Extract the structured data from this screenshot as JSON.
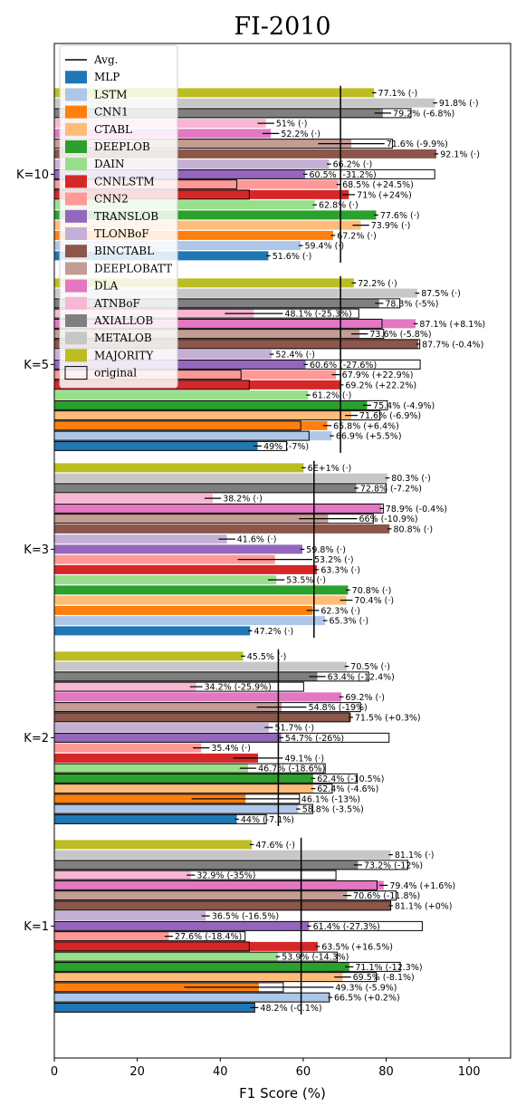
{
  "chart_data": {
    "type": "bar",
    "orientation": "horizontal",
    "title": "FI-2010",
    "xlabel": "F1 Score (%)",
    "ylabel": "",
    "xlim": [
      0,
      110
    ],
    "xticks": [
      "0",
      "20",
      "40",
      "60",
      "80",
      "100"
    ],
    "grid": false,
    "legend_position": "top-left",
    "avg_label": "Avg.",
    "original_label": "original",
    "models": [
      "MLP",
      "LSTM",
      "CNN1",
      "CTABL",
      "DEEPLOB",
      "DAIN",
      "CNNLSTM",
      "CNN2",
      "TRANSLOB",
      "TLONBoF",
      "BINCTABL",
      "DEEPLOBATT",
      "DLA",
      "ATNBoF",
      "AXIALLOB",
      "METALOB",
      "MAJORITY"
    ],
    "colors": [
      "#1f77b4",
      "#aec7e8",
      "#ff7f0e",
      "#ffbb78",
      "#2ca02c",
      "#98df8a",
      "#d62728",
      "#ff9896",
      "#9467bd",
      "#c5b0d5",
      "#8c564b",
      "#c49c94",
      "#e377c2",
      "#f7b6d2",
      "#7f7f7f",
      "#c7c7c7",
      "#bcbd22"
    ],
    "groups": [
      {
        "label": "K=10",
        "avg": 69,
        "values": [
          51.6,
          59.4,
          67.2,
          73.9,
          77.6,
          62.8,
          71,
          68.5,
          60.5,
          66.2,
          92.1,
          71.6,
          52.2,
          51,
          79.2,
          91.8,
          77.1
        ],
        "originals": [
          null,
          null,
          null,
          null,
          null,
          null,
          47,
          44,
          91.7,
          null,
          null,
          81.5,
          null,
          null,
          86,
          null,
          null
        ],
        "errors": [
          0,
          0,
          0,
          2,
          0,
          0,
          1.5,
          0,
          0,
          0,
          0,
          8,
          2,
          2,
          2,
          0,
          0
        ],
        "labels": [
          "51.6% (·)",
          "59.4% (·)",
          "67.2% (·)",
          "73.9% (·)",
          "77.6% (·)",
          "62.8% (·)",
          "71% (+24%)",
          "68.5% (+24.5%)",
          "60.5% (-31.2%)",
          "66.2% (·)",
          "92.1% (·)",
          "71.6% (-9.9%)",
          "52.2% (·)",
          "51% (·)",
          "79.2% (-6.8%)",
          "91.8% (·)",
          "77.1% (·)"
        ]
      },
      {
        "label": "K=5",
        "avg": 69,
        "values": [
          49,
          66.9,
          65.8,
          71.6,
          75.4,
          61.2,
          69.2,
          67.9,
          60.6,
          52.4,
          87.7,
          73.6,
          87.1,
          48.1,
          78.3,
          87.5,
          72.2
        ],
        "originals": [
          56,
          61.4,
          59.4,
          78.5,
          80.3,
          null,
          47,
          45,
          88.2,
          null,
          88.1,
          79.4,
          79,
          73.4,
          83.3,
          null,
          null
        ],
        "errors": [
          1,
          0,
          1,
          1.5,
          1,
          0,
          0,
          1,
          0,
          0,
          0,
          2,
          0,
          7,
          1,
          0,
          0
        ],
        "labels": [
          "49% (-7%)",
          "66.9% (+5.5%)",
          "65.8% (+6.4%)",
          "71.6% (-6.9%)",
          "75.4% (-4.9%)",
          "61.2% (·)",
          "69.2% (+22.2%)",
          "67.9% (+22.9%)",
          "60.6% (-27.6%)",
          "52.4% (·)",
          "87.7% (-0.4%)",
          "73.6% (-5.8%)",
          "87.1% (+8.1%)",
          "48.1% (-25.3%)",
          "78.3% (-5%)",
          "87.5% (·)",
          "72.2% (·)"
        ]
      },
      {
        "label": "K=3",
        "avg": 62.6,
        "values": [
          47.2,
          65.3,
          62.3,
          70.4,
          70.8,
          53.5,
          63.3,
          53.2,
          59.8,
          41.6,
          80.8,
          66,
          78.9,
          38.2,
          72.8,
          80.3,
          60.1
        ],
        "originals": [
          null,
          null,
          null,
          null,
          null,
          null,
          null,
          null,
          null,
          null,
          null,
          76.9,
          79.3,
          null,
          80,
          null,
          null
        ],
        "errors": [
          0,
          0,
          1.5,
          1.5,
          0,
          2,
          0,
          9,
          0,
          2,
          0,
          7,
          0,
          2,
          0,
          0,
          0
        ],
        "labels": [
          "47.2% (·)",
          "65.3% (·)",
          "62.3% (·)",
          "70.4% (·)",
          "70.8% (·)",
          "53.5% (·)",
          "63.3% (·)",
          "53.2% (·)",
          "59.8% (·)",
          "41.6% (·)",
          "80.8% (·)",
          "66% (-10.9%)",
          "78.9% (-0.4%)",
          "38.2% (·)",
          "72.8% (-7.2%)",
          "80.3% (·)",
          "6E+1% (·)"
        ]
      },
      {
        "label": "K=2",
        "avg": 54,
        "values": [
          44,
          58.8,
          46.1,
          62.4,
          62.4,
          46.7,
          49.1,
          35.4,
          54.7,
          51.7,
          71.5,
          54.8,
          69.2,
          34.2,
          63.4,
          70.5,
          45.5
        ],
        "originals": [
          51.1,
          62.3,
          59.1,
          67,
          73,
          65.3,
          null,
          null,
          80.7,
          null,
          71.2,
          73.8,
          null,
          60.1,
          75.8,
          null,
          null
        ],
        "errors": [
          0,
          0,
          13,
          0,
          0,
          2,
          6,
          2,
          0,
          1,
          0,
          6,
          0,
          1.5,
          2,
          0,
          0
        ],
        "labels": [
          "44% (-7.1%)",
          "58.8% (-3.5%)",
          "46.1% (-13%)",
          "62.4% (-4.6%)",
          "62.4% (-10.5%)",
          "46.7% (-18.6%)",
          "49.1% (·)",
          "35.4% (·)",
          "54.7% (-26%)",
          "51.7% (·)",
          "71.5% (+0.3%)",
          "54.8% (-19%)",
          "69.2% (·)",
          "34.2% (-25.9%)",
          "63.4% (-12.4%)",
          "70.5% (·)",
          "45.5% (·)"
        ]
      },
      {
        "label": "K=1",
        "avg": 59.5,
        "values": [
          48.2,
          66.5,
          49.3,
          69.5,
          71.1,
          53.9,
          63.5,
          27.6,
          61.4,
          36.5,
          81.1,
          70.6,
          79.4,
          32.9,
          73.2,
          81.1,
          47.6
        ],
        "originals": [
          48.3,
          66.3,
          55.2,
          77.6,
          83.4,
          68.2,
          47,
          46,
          88.7,
          null,
          81.1,
          82.4,
          77.8,
          67.9,
          85.2,
          null,
          null
        ],
        "errors": [
          1,
          0,
          18,
          2,
          1,
          0,
          0,
          1,
          0,
          1,
          0,
          1,
          1,
          1,
          1,
          0,
          0
        ],
        "labels": [
          "48.2% (-0.1%)",
          "66.5% (+0.2%)",
          "49.3% (-5.9%)",
          "69.5% (-8.1%)",
          "71.1% (-12.3%)",
          "53.9% (-14.3%)",
          "63.5% (+16.5%)",
          "27.6% (-18.4%)",
          "61.4% (-27.3%)",
          "36.5% (-16.5%)",
          "81.1% (+0%)",
          "70.6% (-11.8%)",
          "79.4% (+1.6%)",
          "32.9% (-35%)",
          "73.2% (-12%)",
          "81.1% (·)",
          "47.6% (·)"
        ]
      }
    ]
  }
}
